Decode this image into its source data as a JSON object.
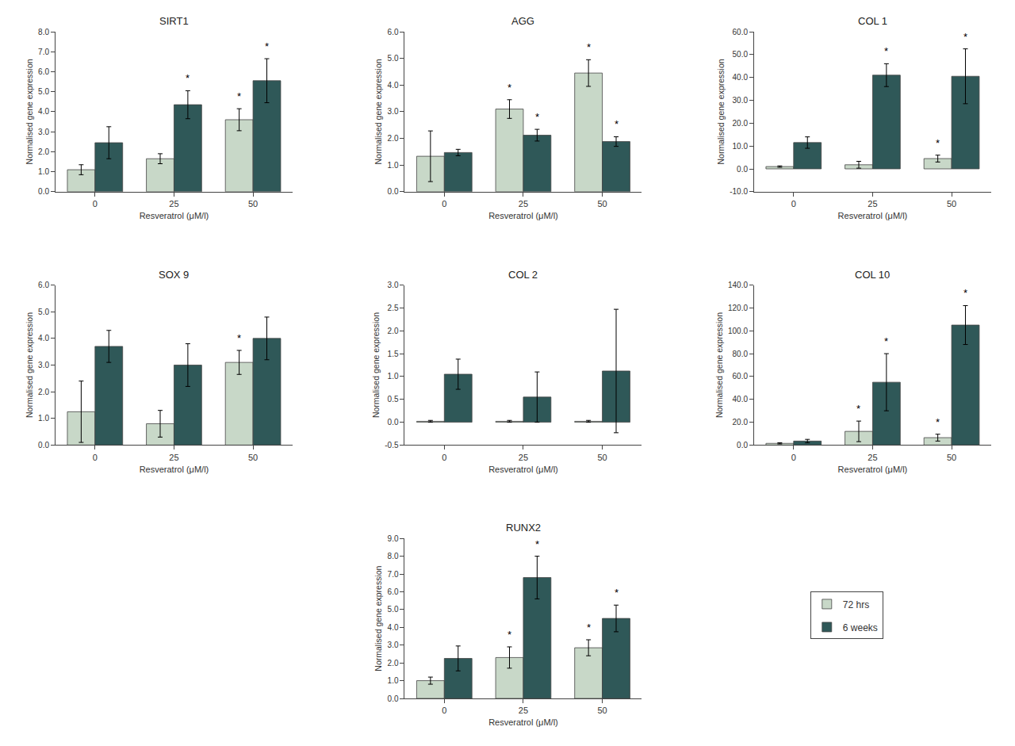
{
  "chart_data": [
    {
      "type": "bar",
      "title": "SIRT1",
      "x_label": "Resveratrol (μM/l)",
      "y_label": "Normalised gene expression",
      "categories": [
        "0",
        "25",
        "50"
      ],
      "grid": false,
      "significance_label": "*",
      "ylim": [
        0,
        8.0
      ],
      "yticks": [
        {
          "value": 0.0,
          "label": "0.0"
        },
        {
          "value": 1.0,
          "label": "1.0"
        },
        {
          "value": 2.0,
          "label": "2.0"
        },
        {
          "value": 3.0,
          "label": "3.0"
        },
        {
          "value": 4.0,
          "label": "4.0"
        },
        {
          "value": 5.0,
          "label": "5.0"
        },
        {
          "value": 6.0,
          "label": "6.0"
        },
        {
          "value": 7.0,
          "label": "7.0"
        },
        {
          "value": 8.0,
          "label": "8.0"
        }
      ],
      "series": [
        {
          "name": "72 hrs",
          "color": "#c8d8c8",
          "values": [
            1.1,
            1.65,
            3.6
          ],
          "errors": [
            0.25,
            0.25,
            0.55
          ],
          "significant": [
            false,
            false,
            true
          ]
        },
        {
          "name": "6 weeks",
          "color": "#2f5858",
          "values": [
            2.45,
            4.35,
            5.55
          ],
          "errors": [
            0.8,
            0.7,
            1.1
          ],
          "significant": [
            false,
            true,
            true
          ]
        }
      ]
    },
    {
      "type": "bar",
      "title": "AGG",
      "x_label": "Resveratrol (μM/l)",
      "y_label": "Normalised gene expression",
      "categories": [
        "0",
        "25",
        "50"
      ],
      "grid": false,
      "significance_label": "*",
      "ylim": [
        0,
        6.0
      ],
      "yticks": [
        {
          "value": 0.0,
          "label": "0.0"
        },
        {
          "value": 1.0,
          "label": "1.0"
        },
        {
          "value": 2.0,
          "label": "2.0"
        },
        {
          "value": 3.0,
          "label": "3.0"
        },
        {
          "value": 4.0,
          "label": "4.0"
        },
        {
          "value": 5.0,
          "label": "5.0"
        },
        {
          "value": 6.0,
          "label": "6.0"
        }
      ],
      "series": [
        {
          "name": "72 hrs",
          "color": "#c8d8c8",
          "values": [
            1.33,
            3.1,
            4.45
          ],
          "errors": [
            0.95,
            0.35,
            0.5
          ],
          "significant": [
            false,
            true,
            true
          ]
        },
        {
          "name": "6 weeks",
          "color": "#2f5858",
          "values": [
            1.47,
            2.12,
            1.88
          ],
          "errors": [
            0.12,
            0.22,
            0.18
          ],
          "significant": [
            false,
            true,
            true
          ]
        }
      ]
    },
    {
      "type": "bar",
      "title": "COL 1",
      "x_label": "Resveratrol (μM/l)",
      "y_label": "Normalised gene expression",
      "categories": [
        "0",
        "25",
        "50"
      ],
      "grid": false,
      "significance_label": "*",
      "ylim": [
        -10.0,
        60.0
      ],
      "yticks": [
        {
          "value": -10.0,
          "label": "-10.0"
        },
        {
          "value": 0.0,
          "label": "0.0"
        },
        {
          "value": 10.0,
          "label": "10.0"
        },
        {
          "value": 20.0,
          "label": "20.0"
        },
        {
          "value": 30.0,
          "label": "30.0"
        },
        {
          "value": 40.0,
          "label": "40.0"
        },
        {
          "value": 50.0,
          "label": "50.0"
        },
        {
          "value": 60.0,
          "label": "60.0"
        }
      ],
      "series": [
        {
          "name": "72 hrs",
          "color": "#c8d8c8",
          "values": [
            1.0,
            1.8,
            4.5
          ],
          "errors": [
            0.3,
            1.5,
            1.5
          ],
          "significant": [
            false,
            false,
            true
          ]
        },
        {
          "name": "6 weeks",
          "color": "#2f5858",
          "values": [
            11.5,
            41.0,
            40.5
          ],
          "errors": [
            2.5,
            5.0,
            12.0
          ],
          "significant": [
            false,
            true,
            true
          ]
        }
      ]
    },
    {
      "type": "bar",
      "title": "SOX 9",
      "x_label": "Resveratrol (μM/l)",
      "y_label": "Normalised gene expression",
      "categories": [
        "0",
        "25",
        "50"
      ],
      "grid": false,
      "significance_label": "*",
      "ylim": [
        0,
        6.0
      ],
      "yticks": [
        {
          "value": 0.0,
          "label": "0.0"
        },
        {
          "value": 1.0,
          "label": "1.0"
        },
        {
          "value": 2.0,
          "label": "2.0"
        },
        {
          "value": 3.0,
          "label": "3.0"
        },
        {
          "value": 4.0,
          "label": "4.0"
        },
        {
          "value": 5.0,
          "label": "5.0"
        },
        {
          "value": 6.0,
          "label": "6.0"
        }
      ],
      "series": [
        {
          "name": "72 hrs",
          "color": "#c8d8c8",
          "values": [
            1.25,
            0.8,
            3.1
          ],
          "errors": [
            1.15,
            0.5,
            0.45
          ],
          "significant": [
            false,
            false,
            true
          ]
        },
        {
          "name": "6 weeks",
          "color": "#2f5858",
          "values": [
            3.7,
            3.0,
            4.0
          ],
          "errors": [
            0.6,
            0.8,
            0.8
          ],
          "significant": [
            false,
            false,
            false
          ]
        }
      ]
    },
    {
      "type": "bar",
      "title": "COL 2",
      "x_label": "Resveratrol (μM/l)",
      "y_label": "Normalised gene expression",
      "categories": [
        "0",
        "25",
        "50"
      ],
      "grid": false,
      "significance_label": "*",
      "ylim": [
        -0.5,
        3.0
      ],
      "yticks": [
        -0.5,
        {
          "value": 0.0,
          "label": "0.0"
        },
        0.5,
        {
          "value": 1.0,
          "label": "1.0"
        },
        1.5,
        {
          "value": 2.0,
          "label": "2.0"
        },
        2.5,
        {
          "value": 3.0,
          "label": "3.0"
        }
      ],
      "series": [
        {
          "name": "72 hrs",
          "color": "#c8d8c8",
          "values": [
            0.02,
            0.02,
            0.02
          ],
          "errors": [
            0.02,
            0.02,
            0.02
          ],
          "significant": [
            false,
            false,
            false
          ]
        },
        {
          "name": "6 weeks",
          "color": "#2f5858",
          "values": [
            1.05,
            0.55,
            1.12
          ],
          "errors": [
            0.33,
            0.55,
            1.35
          ],
          "significant": [
            false,
            false,
            false
          ]
        }
      ]
    },
    {
      "type": "bar",
      "title": "COL 10",
      "x_label": "Resveratrol (μM/l)",
      "y_label": "Normalised gene expression",
      "categories": [
        "0",
        "25",
        "50"
      ],
      "grid": false,
      "significance_label": "*",
      "ylim": [
        0,
        140.0
      ],
      "yticks": [
        {
          "value": 0.0,
          "label": "0.0"
        },
        {
          "value": 20.0,
          "label": "20.0"
        },
        {
          "value": 40.0,
          "label": "40.0"
        },
        {
          "value": 60.0,
          "label": "60.0"
        },
        {
          "value": 80.0,
          "label": "80.0"
        },
        {
          "value": 100.0,
          "label": "100.0"
        },
        {
          "value": 120.0,
          "label": "120.0"
        },
        {
          "value": 140.0,
          "label": "140.0"
        }
      ],
      "series": [
        {
          "name": "72 hrs",
          "color": "#c8d8c8",
          "values": [
            1.5,
            12.0,
            6.5
          ],
          "errors": [
            0.5,
            9.0,
            3.0
          ],
          "significant": [
            false,
            true,
            true
          ]
        },
        {
          "name": "6 weeks",
          "color": "#2f5858",
          "values": [
            3.5,
            55.0,
            105.0
          ],
          "errors": [
            1.5,
            25.0,
            17.0
          ],
          "significant": [
            false,
            true,
            true
          ]
        }
      ]
    },
    {
      "type": "bar",
      "title": "RUNX2",
      "x_label": "Resveratrol (μM/l)",
      "y_label": "Normalised gene expression",
      "categories": [
        "0",
        "25",
        "50"
      ],
      "grid": false,
      "significance_label": "*",
      "ylim": [
        0,
        9.0
      ],
      "yticks": [
        {
          "value": 0.0,
          "label": "0.0"
        },
        {
          "value": 1.0,
          "label": "1.0"
        },
        {
          "value": 2.0,
          "label": "2.0"
        },
        {
          "value": 3.0,
          "label": "3.0"
        },
        {
          "value": 4.0,
          "label": "4.0"
        },
        {
          "value": 5.0,
          "label": "5.0"
        },
        {
          "value": 6.0,
          "label": "6.0"
        },
        {
          "value": 7.0,
          "label": "7.0"
        },
        {
          "value": 8.0,
          "label": "8.0"
        },
        {
          "value": 9.0,
          "label": "9.0"
        }
      ],
      "series": [
        {
          "name": "72 hrs",
          "color": "#c8d8c8",
          "values": [
            1.0,
            2.3,
            2.85
          ],
          "errors": [
            0.2,
            0.6,
            0.45
          ],
          "significant": [
            false,
            true,
            true
          ]
        },
        {
          "name": "6 weeks",
          "color": "#2f5858",
          "values": [
            2.25,
            6.8,
            4.5
          ],
          "errors": [
            0.7,
            1.2,
            0.75
          ],
          "significant": [
            false,
            true,
            true
          ]
        }
      ]
    }
  ]
}
